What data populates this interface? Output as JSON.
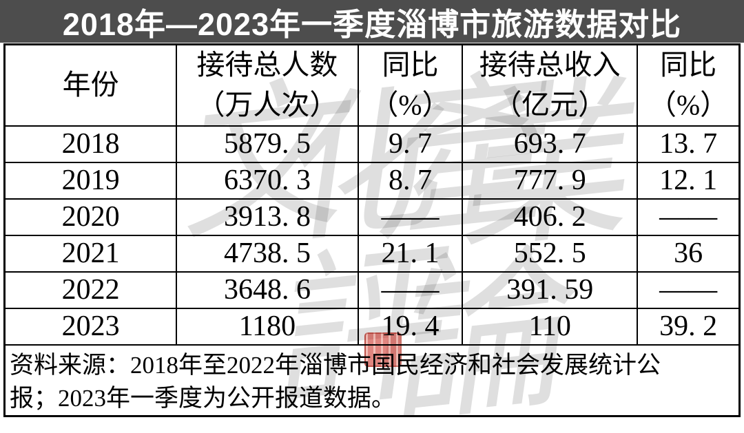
{
  "title": "2018年—2023年一季度淄博市旅游数据对比",
  "table": {
    "headers": [
      "年份",
      "接待总人数\n（万人次）",
      "同比\n（%）",
      "接待总收入\n（亿元）",
      "同比\n（%）"
    ],
    "rows": [
      [
        "2018",
        "5879. 5",
        "9. 7",
        "693. 7",
        "13. 7"
      ],
      [
        "2019",
        "6370. 3",
        "8. 7",
        "777. 9",
        "12. 1"
      ],
      [
        "2020",
        "3913. 8",
        "——",
        "406. 2",
        "——"
      ],
      [
        "2021",
        "4738. 5",
        "21. 1",
        "552. 5",
        "36"
      ],
      [
        "2022",
        "3648. 6",
        "——",
        "391. 59",
        "——"
      ],
      [
        "2023",
        "1180",
        "19. 4",
        "110",
        "39. 2"
      ]
    ]
  },
  "source_note": "资料来源：2018年至2022年淄博市国民经济和社会发展统计公\n报；2023年一季度为公开报道数据。",
  "watermark": {
    "chars": [
      "文",
      "化",
      "產",
      "業",
      "評",
      "論"
    ]
  },
  "colors": {
    "title_bar_bg": "#4d4d4d",
    "title_text": "#ffffff",
    "table_border": "#000000",
    "seal_red": "#c52116"
  },
  "chart_data": {
    "type": "table",
    "title": "2018年—2023年一季度淄博市旅游数据对比",
    "columns": [
      "年份",
      "接待总人数（万人次）",
      "同比（%）",
      "接待总收入（亿元）",
      "同比（%）"
    ],
    "rows": [
      {
        "year": 2018,
        "visitors_wan": 5879.5,
        "visitors_yoy_pct": 9.7,
        "revenue_yi": 693.7,
        "revenue_yoy_pct": 13.7
      },
      {
        "year": 2019,
        "visitors_wan": 6370.3,
        "visitors_yoy_pct": 8.7,
        "revenue_yi": 777.9,
        "revenue_yoy_pct": 12.1
      },
      {
        "year": 2020,
        "visitors_wan": 3913.8,
        "visitors_yoy_pct": null,
        "revenue_yi": 406.2,
        "revenue_yoy_pct": null
      },
      {
        "year": 2021,
        "visitors_wan": 4738.5,
        "visitors_yoy_pct": 21.1,
        "revenue_yi": 552.5,
        "revenue_yoy_pct": 36
      },
      {
        "year": 2022,
        "visitors_wan": 3648.6,
        "visitors_yoy_pct": null,
        "revenue_yi": 391.59,
        "revenue_yoy_pct": null
      },
      {
        "year": 2023,
        "visitors_wan": 1180,
        "visitors_yoy_pct": 19.4,
        "revenue_yi": 110,
        "revenue_yoy_pct": 39.2
      }
    ],
    "missing_marker": "——",
    "source": "资料来源：2018年至2022年淄博市国民经济和社会发展统计公报；2023年一季度为公开报道数据。"
  }
}
